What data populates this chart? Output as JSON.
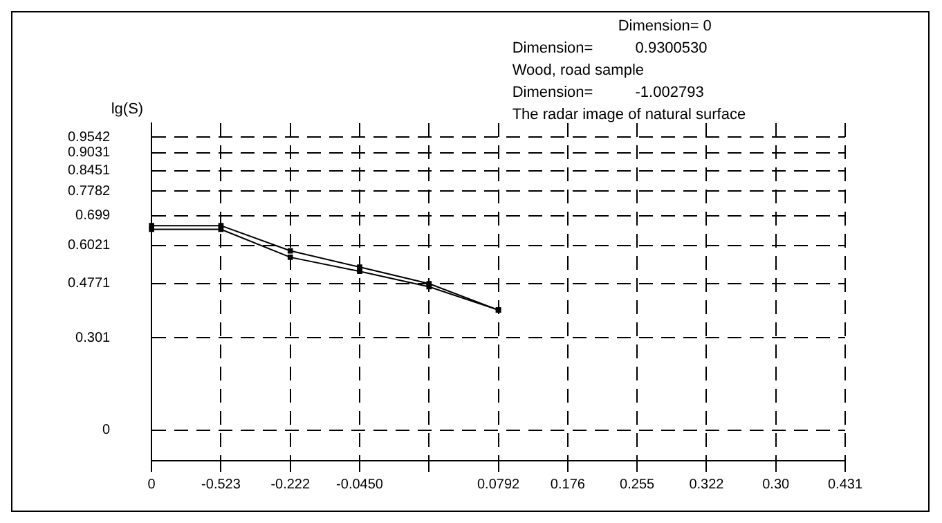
{
  "chart_data": {
    "type": "line",
    "ylabel": "lg(S)",
    "categories": [
      "0",
      "-0.523",
      "-0.222",
      "-0.0450",
      null,
      "0.0792",
      "0.176",
      "0.255",
      "0.322",
      "0.30",
      "0.431"
    ],
    "series": [
      {
        "color": "#000000",
        "values": [
          0.666,
          0.666,
          0.584,
          0.531,
          0.477,
          0.391,
          null,
          null,
          null,
          null,
          null
        ]
      },
      {
        "color": "#000000",
        "values": [
          0.654,
          0.654,
          0.563,
          0.517,
          0.467,
          0.391,
          null,
          null,
          null,
          null,
          null
        ]
      }
    ],
    "ylim": [
      -0.1,
      1.0
    ],
    "yticks": [
      0,
      0.301,
      0.4771,
      0.6021,
      0.699,
      0.7782,
      0.8451,
      0.9031,
      0.9542
    ],
    "grid": true,
    "legend": false,
    "marker": "square",
    "line_style": "solid",
    "annotations": [
      "Dimension= 0",
      "Dimension=          0.9300530",
      "Wood, road sample",
      "Dimension=          -1.002793",
      "The radar image of natural surface"
    ]
  }
}
